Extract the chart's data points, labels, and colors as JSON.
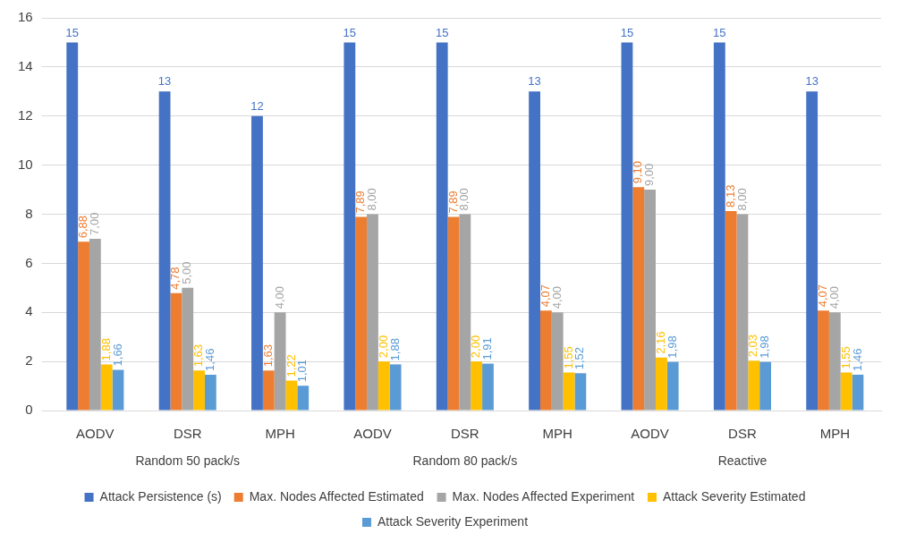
{
  "chart_data": {
    "type": "bar",
    "categories": [
      "AODV",
      "DSR",
      "MPH",
      "AODV",
      "DSR",
      "MPH",
      "AODV",
      "DSR",
      "MPH"
    ],
    "annotations": [
      "Random 50 pack/s",
      "Random 80 pack/s",
      "Reactive"
    ],
    "series": [
      {
        "name": "Attack Persistence (s)",
        "color": "#4472c4",
        "values": [
          15,
          13,
          12,
          15,
          15,
          13,
          15,
          15,
          13
        ],
        "value_labels": [
          "15",
          "13",
          "12",
          "15",
          "15",
          "13",
          "15",
          "15",
          "13"
        ]
      },
      {
        "name": "Max. Nodes Affected Estimated",
        "color": "#ed7d31",
        "values": [
          6.88,
          4.78,
          1.63,
          7.89,
          7.89,
          4.07,
          9.1,
          8.13,
          4.07
        ],
        "value_labels": [
          "6,88",
          "4,78",
          "1,63",
          "7,89",
          "7,89",
          "4,07",
          "9,10",
          "8,13",
          "4,07"
        ]
      },
      {
        "name": "Max. Nodes Affected Experiment",
        "color": "#a5a5a5",
        "values": [
          7,
          5,
          4,
          8,
          8,
          4,
          9,
          8,
          4
        ],
        "value_labels": [
          "7,00",
          "5,00",
          "4,00",
          "8,00",
          "8,00",
          "4,00",
          "9,00",
          "8,00",
          "4,00"
        ]
      },
      {
        "name": "Attack Severity Estimated",
        "color": "#ffc000",
        "values": [
          1.88,
          1.63,
          1.22,
          2,
          2,
          1.55,
          2.16,
          2.03,
          1.55
        ],
        "value_labels": [
          "1,88",
          "1,63",
          "1,22",
          "2,00",
          "2,00",
          "1,55",
          "2,16",
          "2,03",
          "1,55"
        ]
      },
      {
        "name": "Attack Severity Experiment",
        "color": "#5b9bd5",
        "values": [
          1.66,
          1.46,
          1.01,
          1.88,
          1.91,
          1.52,
          1.98,
          1.98,
          1.46
        ],
        "value_labels": [
          "1,66",
          "1,46",
          "1,01",
          "1,88",
          "1,91",
          "1,52",
          "1,98",
          "1,98",
          "1,46"
        ]
      }
    ],
    "ylim": [
      0,
      16
    ],
    "yticks": [
      0,
      2,
      4,
      6,
      8,
      10,
      12,
      14,
      16
    ],
    "grid": "y",
    "legend": "bottom"
  }
}
